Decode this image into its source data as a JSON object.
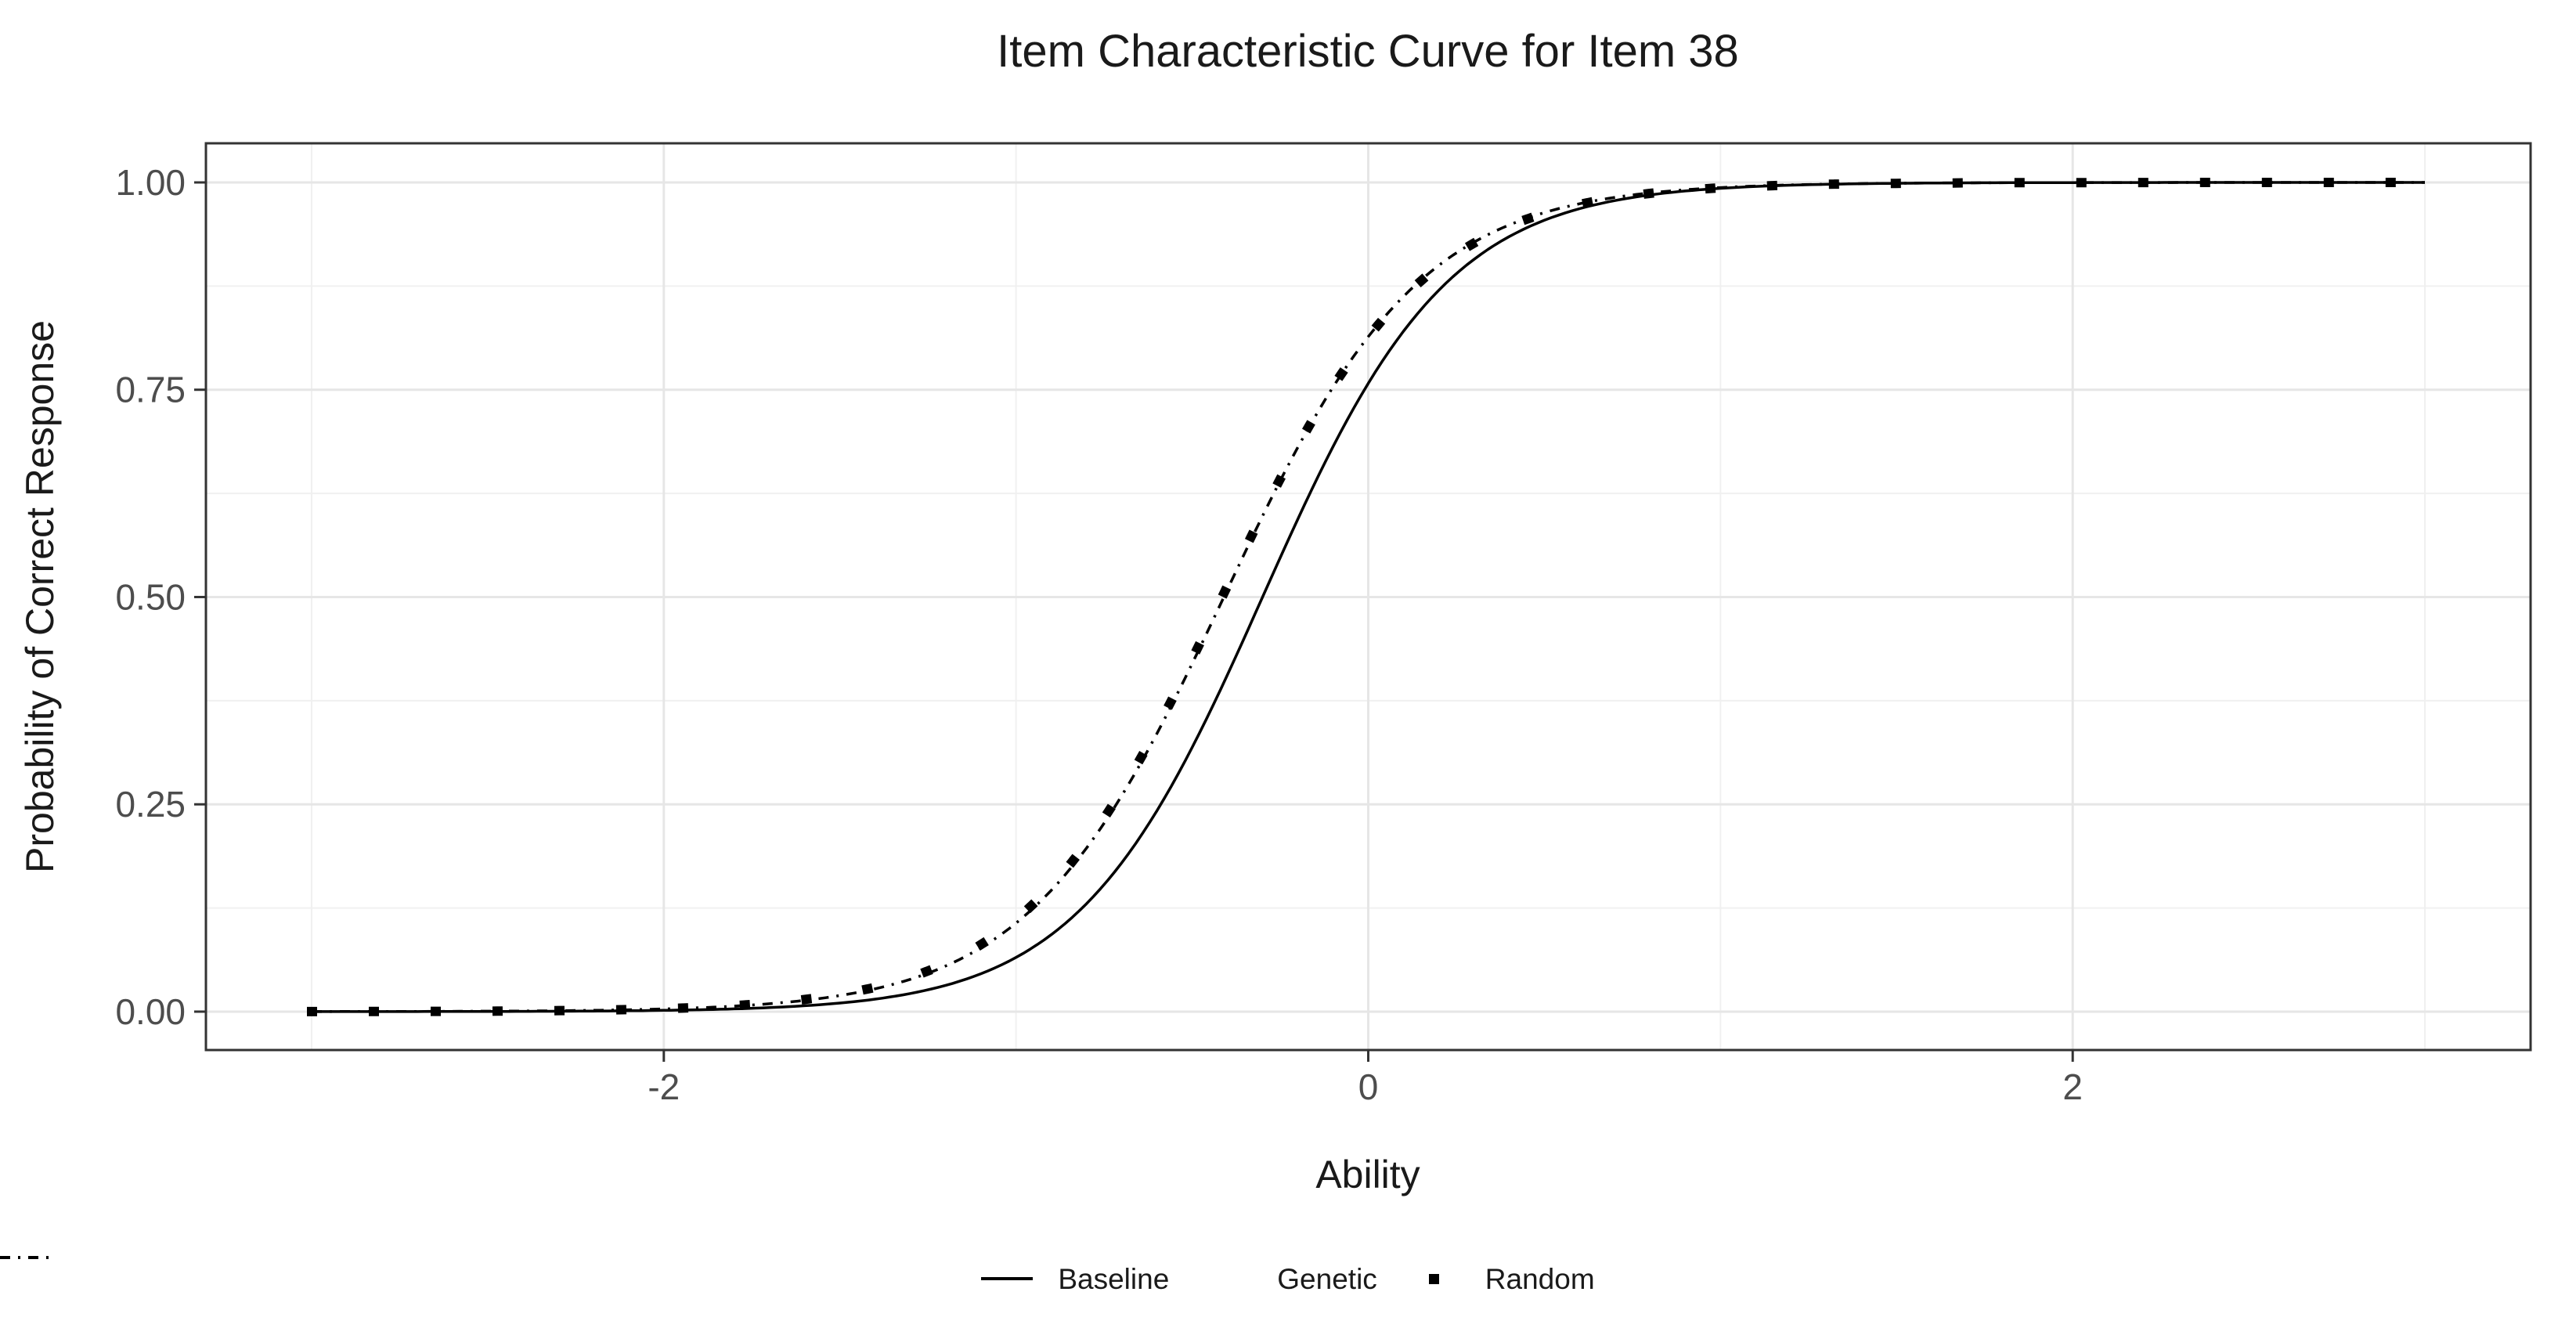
{
  "chart_data": {
    "type": "line",
    "title": "Item Characteristic Curve for Item 38",
    "xlabel": "Ability",
    "ylabel": "Probability of Correct Response",
    "grid": true,
    "axes": {
      "x_data_range": [
        -3,
        3
      ],
      "x_expanded_range": [
        -3.3,
        3.3
      ],
      "y_expanded_range": [
        -0.0463,
        1.0472
      ],
      "x_ticks": [
        -2,
        0,
        2
      ],
      "x_tick_labels": [
        "-2",
        "0",
        "2"
      ],
      "x_minor_gridlines": [
        -3,
        -1,
        1,
        3
      ],
      "y_ticks": [
        0,
        0.25,
        0.5,
        0.75,
        1
      ],
      "y_tick_labels": [
        "0.00",
        "0.25",
        "0.50",
        "0.75",
        "1.00"
      ],
      "y_minor_gridlines": [
        0.125,
        0.375,
        0.625,
        0.875
      ]
    },
    "sample_thetas": [
      -3,
      -2.5,
      -2,
      -1.5,
      -1,
      -0.5,
      0,
      0.5,
      1,
      1.5,
      2,
      2.5,
      3
    ],
    "series": [
      {
        "name": "Baseline",
        "line_style": "solid",
        "model": "logistic",
        "slope": 3.8,
        "location": -0.3,
        "sample_p": [
          0.0,
          0.0,
          0.002,
          0.01,
          0.065,
          0.319,
          0.758,
          0.954,
          0.993,
          0.999,
          1.0,
          1.0,
          1.0
        ]
      },
      {
        "name": "Genetic",
        "line_style": "dotdash",
        "model": "logistic",
        "slope": 3.6,
        "location": -0.41,
        "sample_p": [
          0.0,
          0.001,
          0.003,
          0.019,
          0.107,
          0.42,
          0.814,
          0.964,
          0.994,
          0.999,
          1.0,
          1.0,
          1.0
        ]
      },
      {
        "name": "Random",
        "line_style": "square-points",
        "model": "logistic",
        "slope": 3.55,
        "location": -0.415,
        "sample_p": [
          0.0,
          0.001,
          0.004,
          0.021,
          0.112,
          0.425,
          0.813,
          0.964,
          0.993,
          0.999,
          1.0,
          1.0,
          1.0
        ]
      }
    ],
    "legend": {
      "position": "bottom",
      "entries": [
        {
          "label": "Baseline",
          "glyph": "solid-line"
        },
        {
          "label": "Genetic",
          "glyph": "dash-dot-line"
        },
        {
          "label": "Random",
          "glyph": "square-point"
        }
      ]
    },
    "colors": {
      "curve": "#000000",
      "grid_major": "#e6e6e6",
      "grid_minor": "#f0f0f0",
      "panel_border": "#333333",
      "tick_mark": "#333333",
      "tick_label": "#4d4d4d",
      "text": "#1a1a1a",
      "background": "#ffffff"
    }
  }
}
